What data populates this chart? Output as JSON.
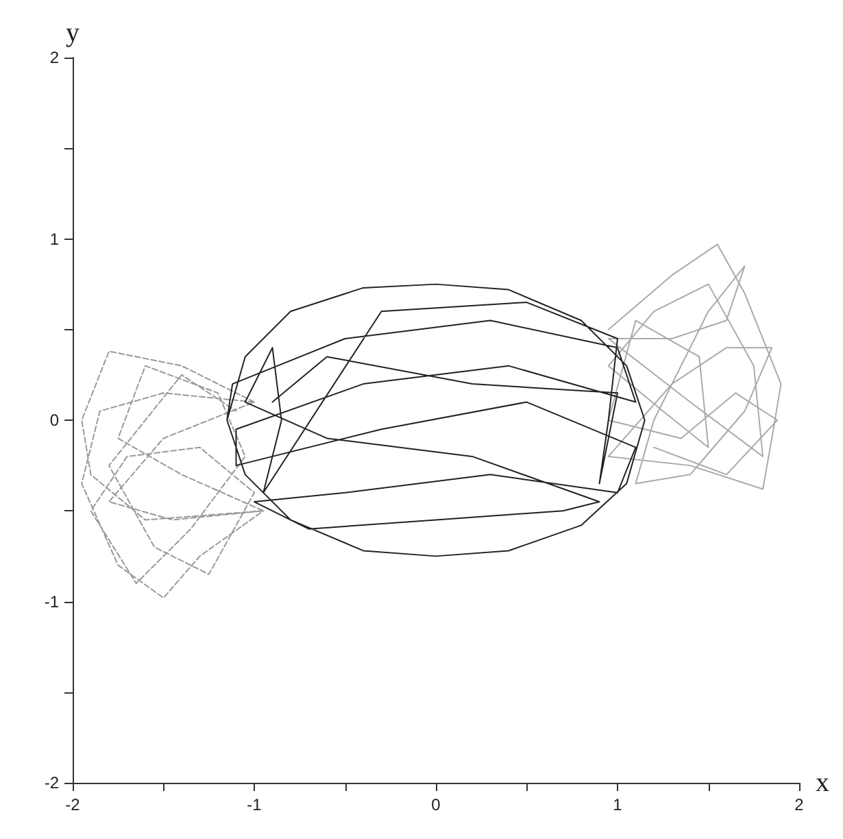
{
  "chart_data": {
    "type": "line",
    "xlabel": "x",
    "ylabel": "y",
    "xlim": [
      -2,
      2
    ],
    "ylim": [
      -2,
      2
    ],
    "xticks": [
      -2,
      {
        "value": -1.5,
        "label": null
      },
      -1,
      {
        "value": -0.5,
        "label": null
      },
      0,
      {
        "value": 0.5,
        "label": null
      },
      1,
      {
        "value": 1.5,
        "label": null
      },
      2
    ],
    "yticks": [
      -2,
      {
        "value": -1.5,
        "label": null
      },
      -1,
      {
        "value": -0.5,
        "label": null
      },
      0,
      {
        "value": 0.5,
        "label": null
      },
      1,
      {
        "value": 1.5,
        "label": null
      },
      2
    ],
    "marker": "none",
    "series": [
      {
        "color": "#aaaaaa",
        "line_style": "solid",
        "x": [
          0.95,
          1.3,
          1.55,
          1.7,
          1.9,
          1.85,
          1.8,
          1.4,
          0.95,
          1.3,
          1.6,
          1.85,
          1.7,
          1.4,
          1.1,
          1.2,
          1.5,
          1.7,
          1.6,
          1.3,
          0.95,
          1.4,
          1.8,
          1.75,
          1.5,
          1.2,
          0.95,
          1.25,
          1.5,
          1.45,
          1.1,
          0.95,
          1.35,
          1.65,
          1.88,
          1.6,
          1.2
        ],
        "values": [
          0.5,
          0.8,
          0.97,
          0.7,
          0.2,
          -0.1,
          -0.38,
          -0.25,
          -0.2,
          0.2,
          0.4,
          0.4,
          0.05,
          -0.3,
          -0.35,
          0.0,
          0.6,
          0.85,
          0.55,
          0.45,
          0.45,
          0.1,
          -0.2,
          0.3,
          0.75,
          0.6,
          0.3,
          0.05,
          -0.15,
          0.35,
          0.55,
          0.0,
          -0.1,
          0.15,
          0.0,
          -0.3,
          -0.15
        ]
      },
      {
        "color": "#999999",
        "line_style": "dashed",
        "x": [
          -1.0,
          -1.4,
          -1.8,
          -1.95,
          -1.9,
          -1.6,
          -0.95,
          -1.3,
          -1.5,
          -1.75,
          -1.95,
          -1.85,
          -1.5,
          -1.0,
          -1.5,
          -1.8,
          -1.45,
          -0.95,
          -1.4,
          -1.75,
          -1.6,
          -1.2,
          -1.05,
          -1.35,
          -1.65,
          -1.9,
          -1.7,
          -1.3,
          -1.0,
          -1.25,
          -1.55,
          -1.8,
          -1.4,
          -1.1
        ],
        "values": [
          0.1,
          0.3,
          0.38,
          0.0,
          -0.3,
          -0.55,
          -0.5,
          -0.75,
          -0.98,
          -0.8,
          -0.35,
          0.05,
          0.15,
          0.1,
          -0.1,
          -0.45,
          -0.55,
          -0.5,
          -0.3,
          -0.1,
          0.3,
          0.15,
          -0.2,
          -0.6,
          -0.9,
          -0.5,
          -0.2,
          -0.15,
          -0.4,
          -0.85,
          -0.7,
          -0.25,
          0.25,
          0.05
        ]
      },
      {
        "color": "#222222",
        "line_style": "solid",
        "x": [
          -1.15,
          -1.05,
          -0.8,
          -0.4,
          0,
          0.4,
          0.8,
          1.05,
          1.15,
          1.05,
          0.8,
          0.4,
          0,
          -0.4,
          -0.8,
          -1.05,
          -1.15,
          -1.12,
          -0.5,
          0.3,
          1.0,
          1.1,
          0.4,
          -0.4,
          -1.1,
          -1.1,
          -0.3,
          0.5,
          1.1,
          1.0,
          0.3,
          -0.5,
          -1.0,
          -0.7,
          0,
          0.7,
          0.9,
          0.2,
          -0.6,
          -1.05,
          -0.9,
          -0.85,
          -0.95,
          -0.3,
          0.5,
          1.0,
          0.95,
          0.9,
          1.0,
          0.2,
          -0.6,
          -0.9
        ],
        "values": [
          0,
          0.35,
          0.6,
          0.73,
          0.75,
          0.72,
          0.55,
          0.3,
          0,
          -0.35,
          -0.58,
          -0.72,
          -0.75,
          -0.72,
          -0.55,
          -0.3,
          0,
          0.2,
          0.45,
          0.55,
          0.4,
          0.1,
          0.3,
          0.2,
          -0.05,
          -0.25,
          -0.05,
          0.1,
          -0.15,
          -0.4,
          -0.3,
          -0.4,
          -0.45,
          -0.6,
          -0.55,
          -0.5,
          -0.45,
          -0.2,
          -0.1,
          0.1,
          0.4,
          0.0,
          -0.4,
          0.6,
          0.65,
          0.45,
          0.0,
          -0.35,
          0.15,
          0.2,
          0.35,
          0.1
        ]
      }
    ]
  }
}
